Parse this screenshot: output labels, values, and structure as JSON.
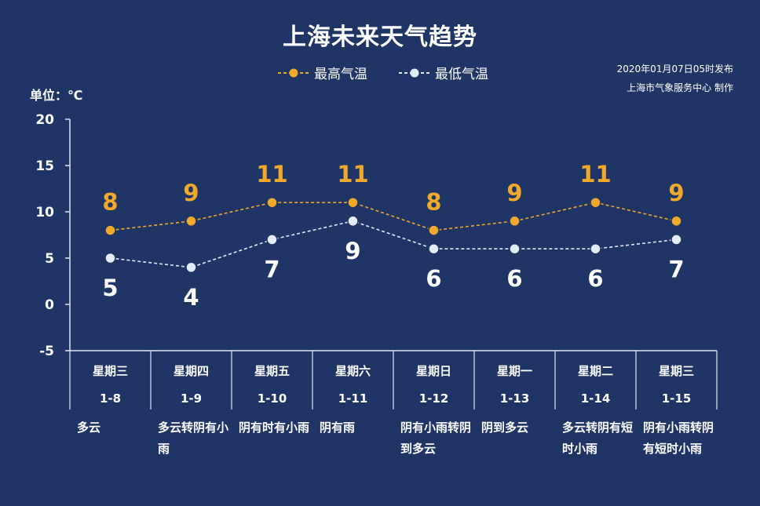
{
  "title": "上海未来天气趋势",
  "release": {
    "time": "2020年01月07日05时发布",
    "org": "上海市气象服务中心  制作"
  },
  "legend": {
    "high_label": "最高气温",
    "low_label": "最低气温"
  },
  "unit_label": "单位：℃",
  "colors": {
    "background": "#1f3566",
    "high": "#f0a92b",
    "low": "#e2ebf7",
    "axis": "#dfe6f2",
    "text": "#ffffff"
  },
  "chart_data": {
    "type": "line",
    "title": "上海未来天气趋势",
    "ylabel": "单位：℃",
    "ylim": [
      -5,
      20
    ],
    "yticks": [
      "20",
      "15",
      "10",
      "5",
      "0",
      "-5"
    ],
    "ytick_values": [
      20,
      15,
      10,
      5,
      0,
      -5
    ],
    "grid": false,
    "legend_position": "top-center",
    "categories": [
      "1-8",
      "1-9",
      "1-10",
      "1-11",
      "1-12",
      "1-13",
      "1-14",
      "1-15"
    ],
    "series": [
      {
        "name": "最高气温",
        "values": [
          8,
          9,
          11,
          11,
          8,
          9,
          11,
          9
        ],
        "labels": [
          "8",
          "9",
          "11",
          "11",
          "8",
          "9",
          "11",
          "9"
        ]
      },
      {
        "name": "最低气温",
        "values": [
          5,
          4,
          7,
          9,
          6,
          6,
          6,
          7
        ],
        "labels": [
          "5",
          "4",
          "7",
          "9",
          "6",
          "6",
          "6",
          "7"
        ]
      }
    ]
  },
  "days": [
    {
      "weekday": "星期三",
      "date": "1-8",
      "weather": "多云"
    },
    {
      "weekday": "星期四",
      "date": "1-9",
      "weather": "多云转阴有小雨"
    },
    {
      "weekday": "星期五",
      "date": "1-10",
      "weather": "阴有时有小雨"
    },
    {
      "weekday": "星期六",
      "date": "1-11",
      "weather": "阴有雨"
    },
    {
      "weekday": "星期日",
      "date": "1-12",
      "weather": "阴有小雨转阴到多云"
    },
    {
      "weekday": "星期一",
      "date": "1-13",
      "weather": "阴到多云"
    },
    {
      "weekday": "星期二",
      "date": "1-14",
      "weather": "多云转阴有短时小雨"
    },
    {
      "weekday": "星期三",
      "date": "1-15",
      "weather": "阴有小雨转阴有短时小雨"
    }
  ]
}
